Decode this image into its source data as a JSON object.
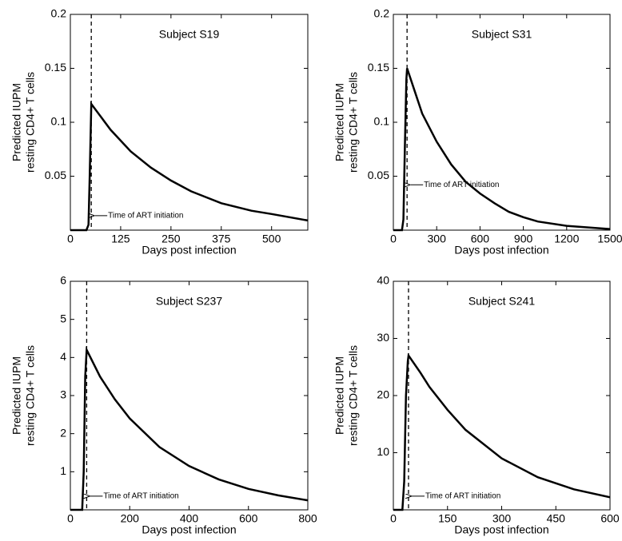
{
  "chart_data": [
    {
      "type": "line",
      "title": "Subject S19",
      "xlabel": "Days post infection",
      "ylabel": [
        "Predicted IUPM",
        "resting CD4+ T cells"
      ],
      "x": [
        0,
        40,
        45,
        48,
        52,
        100,
        150,
        200,
        250,
        300,
        375,
        450,
        500,
        590
      ],
      "values": [
        0,
        0,
        0.005,
        0.05,
        0.117,
        0.093,
        0.073,
        0.058,
        0.046,
        0.036,
        0.025,
        0.018,
        0.015,
        0.009
      ],
      "color": "#000000",
      "xlim": [
        0,
        590
      ],
      "xticks": [
        0,
        125,
        250,
        375,
        500
      ],
      "ylim": [
        0,
        0.2
      ],
      "yticks": [
        0.05,
        0.1,
        0.15,
        0.2
      ],
      "vline": 52,
      "annotation": "Time of ART initiation"
    },
    {
      "type": "line",
      "title": "Subject S31",
      "xlabel": "Days post infection",
      "ylabel": [
        "Predicted IUPM",
        "resting CD4+ T cells"
      ],
      "x": [
        0,
        60,
        70,
        80,
        90,
        95,
        150,
        200,
        300,
        400,
        500,
        600,
        700,
        800,
        900,
        1000,
        1200,
        1500
      ],
      "values": [
        0,
        0,
        0.01,
        0.08,
        0.14,
        0.15,
        0.128,
        0.108,
        0.082,
        0.061,
        0.045,
        0.034,
        0.025,
        0.017,
        0.012,
        0.008,
        0.004,
        0.001
      ],
      "color": "#000000",
      "xlim": [
        0,
        1500
      ],
      "xticks": [
        0,
        300,
        600,
        900,
        1200,
        1500
      ],
      "ylim": [
        0,
        0.2
      ],
      "yticks": [
        0.05,
        0.1,
        0.15,
        0.2
      ],
      "vline": 95,
      "annotation": "Time of ART initiation"
    },
    {
      "type": "line",
      "title": "Subject S237",
      "xlabel": "Days post infection",
      "ylabel": [
        "Predicted IUPM",
        "resting CD4+ T cells"
      ],
      "x": [
        0,
        40,
        45,
        50,
        55,
        100,
        150,
        200,
        300,
        400,
        500,
        600,
        700,
        800
      ],
      "values": [
        0,
        0,
        1,
        3.5,
        4.2,
        3.5,
        2.9,
        2.4,
        1.65,
        1.15,
        0.8,
        0.55,
        0.38,
        0.25
      ],
      "color": "#000000",
      "xlim": [
        0,
        800
      ],
      "xticks": [
        0,
        200,
        400,
        600,
        800
      ],
      "ylim": [
        0,
        6
      ],
      "yticks": [
        1,
        2,
        3,
        4,
        5,
        6
      ],
      "vline": 55,
      "annotation": "Time of ART initiation"
    },
    {
      "type": "line",
      "title": "Subject S241",
      "xlabel": "Days post infection",
      "ylabel": [
        "Predicted IUPM",
        "resting CD4+ T cells"
      ],
      "x": [
        0,
        25,
        30,
        35,
        40,
        42,
        75,
        100,
        150,
        200,
        300,
        400,
        500,
        600
      ],
      "values": [
        0,
        0,
        5,
        20,
        26,
        27,
        24,
        21.5,
        17.5,
        14,
        9,
        5.7,
        3.6,
        2.2
      ],
      "color": "#000000",
      "xlim": [
        0,
        600
      ],
      "xticks": [
        0,
        150,
        300,
        450,
        600
      ],
      "ylim": [
        0,
        40
      ],
      "yticks": [
        10,
        20,
        30,
        40
      ],
      "vline": 42,
      "annotation": "Time of ART initiation"
    }
  ]
}
